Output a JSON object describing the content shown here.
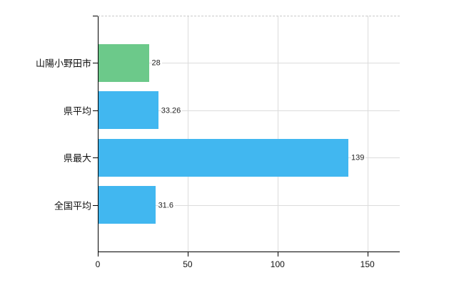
{
  "chart_data": {
    "type": "bar",
    "orientation": "horizontal",
    "title": "",
    "xlabel": "",
    "ylabel": "",
    "categories": [
      "山陽小野田市",
      "県平均",
      "県最大",
      "全国平均"
    ],
    "values": [
      28,
      33.26,
      139,
      31.6
    ],
    "value_labels": [
      "28",
      "33.26",
      "139",
      "31.6"
    ],
    "bar_colors": [
      "#6cc98a",
      "#41b7f0",
      "#41b7f0",
      "#41b7f0"
    ],
    "xlim": [
      0,
      168
    ],
    "x_ticks": [
      0,
      50,
      100,
      150
    ],
    "x_tick_labels": [
      "0",
      "50",
      "100",
      "150"
    ],
    "grid": true,
    "legend_position": "none"
  },
  "colors": {
    "bar_green": "#6cc98a",
    "bar_blue": "#41b7f0",
    "gridline": "#dcdcdc",
    "top_border": "#c9c9c9",
    "axis": "#000000",
    "text": "#111111",
    "background": "#ffffff"
  }
}
